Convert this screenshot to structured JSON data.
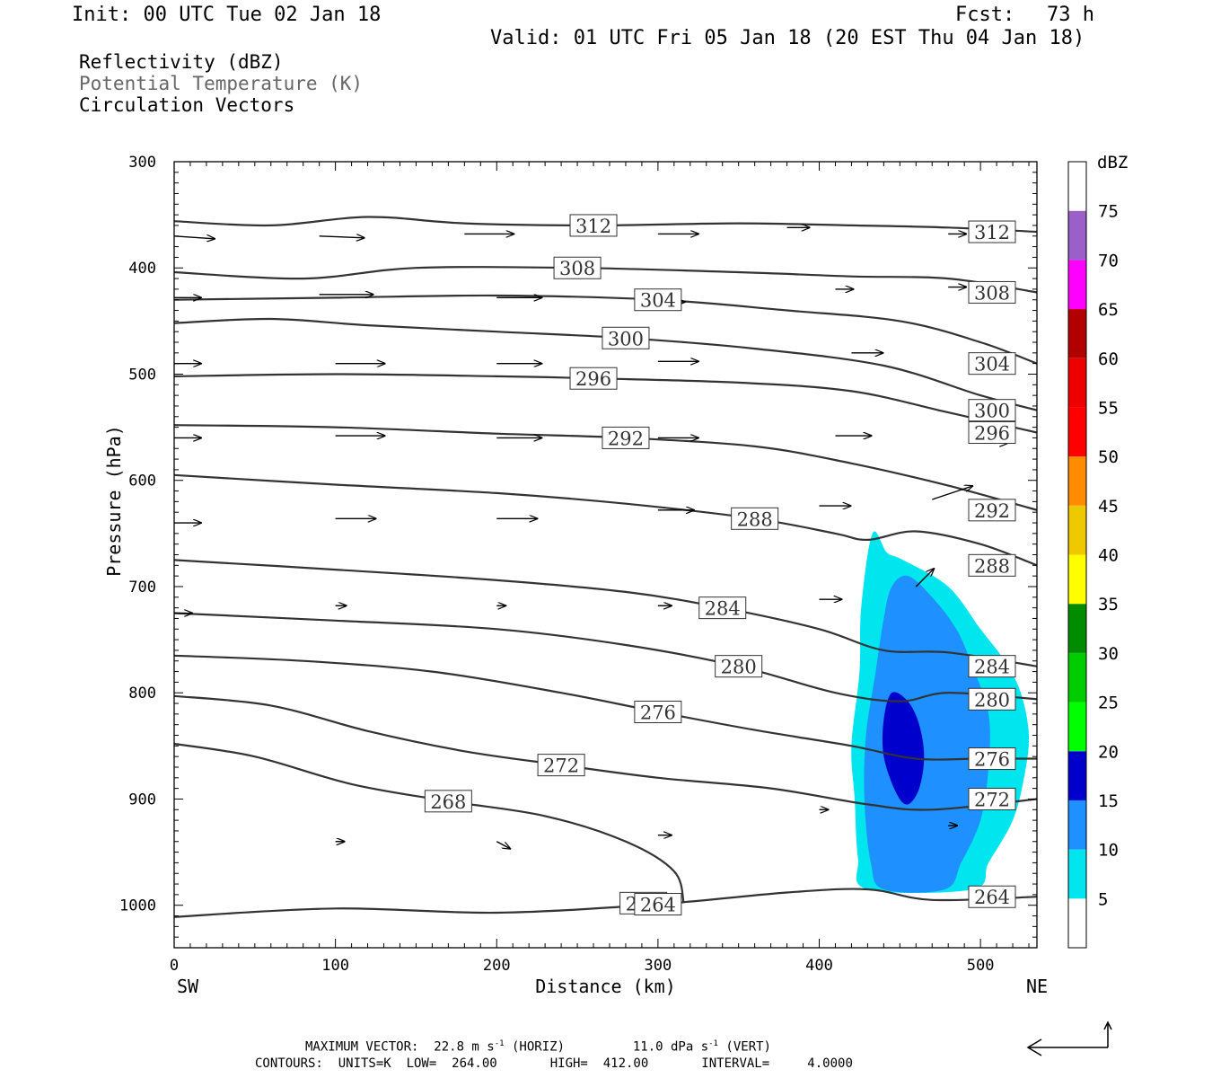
{
  "header": {
    "init": "Init: 00 UTC Tue 02 Jan 18",
    "fcst_label": "Fcst:",
    "fcst_value": "73 h",
    "valid": "Valid: 01 UTC Fri 05 Jan 18 (20 EST Thu 04 Jan 18)"
  },
  "fields": {
    "reflectivity": "Reflectivity (dBZ)",
    "theta": "Potential Temperature (K)",
    "vectors": "Circulation Vectors"
  },
  "footer": {
    "line1_a": "MAXIMUM VECTOR:  22.8 m s",
    "line1_sup1": "-1",
    "line1_b": " (HORIZ)         11.0 dPa s",
    "line1_sup2": "-1",
    "line1_c": " (VERT)",
    "line2": "CONTOURS:  UNITS=K  LOW=  264.00       HIGH=  412.00       INTERVAL=     4.0000"
  },
  "chart_data": {
    "type": "cross-section",
    "xlabel": "Distance (km)",
    "ylabel": "Pressure (hPa)",
    "xlim": [
      0,
      535
    ],
    "ylim": [
      1040,
      300
    ],
    "x_ticks": [
      0,
      100,
      200,
      300,
      400,
      500
    ],
    "y_ticks": [
      300,
      400,
      500,
      600,
      700,
      800,
      900,
      1000
    ],
    "x_end_labels": {
      "left": "SW",
      "right": "NE"
    },
    "colorbar": {
      "unit": "dBZ",
      "levels": [
        5,
        10,
        15,
        20,
        25,
        30,
        35,
        40,
        45,
        50,
        55,
        60,
        65,
        70,
        75
      ],
      "colors": [
        "#ffffff",
        "#00e5ee",
        "#1e90ff",
        "#0000cd",
        "#00ff00",
        "#00cd00",
        "#008b00",
        "#ffff00",
        "#eec900",
        "#ff8c00",
        "#ff0000",
        "#ee0000",
        "#b20000",
        "#ff00ff",
        "#9a5fc8",
        "#ffffff"
      ]
    },
    "theta_contours": [
      {
        "label": "312",
        "points": [
          [
            0,
            356
          ],
          [
            60,
            360
          ],
          [
            120,
            352
          ],
          [
            180,
            358
          ],
          [
            260,
            360
          ],
          [
            350,
            358
          ],
          [
            420,
            360
          ],
          [
            480,
            362
          ],
          [
            535,
            366
          ]
        ]
      },
      {
        "label": "308",
        "points": [
          [
            0,
            404
          ],
          [
            80,
            410
          ],
          [
            150,
            400
          ],
          [
            250,
            400
          ],
          [
            350,
            404
          ],
          [
            420,
            408
          ],
          [
            480,
            410
          ],
          [
            535,
            423
          ]
        ]
      },
      {
        "label": "304",
        "points": [
          [
            0,
            430
          ],
          [
            100,
            428
          ],
          [
            200,
            426
          ],
          [
            300,
            430
          ],
          [
            380,
            440
          ],
          [
            450,
            450
          ],
          [
            500,
            470
          ],
          [
            535,
            490
          ]
        ]
      },
      {
        "label": "300",
        "points": [
          [
            0,
            452
          ],
          [
            60,
            448
          ],
          [
            120,
            454
          ],
          [
            200,
            460
          ],
          [
            280,
            466
          ],
          [
            360,
            476
          ],
          [
            440,
            492
          ],
          [
            500,
            520
          ],
          [
            535,
            534
          ]
        ]
      },
      {
        "label": "296",
        "points": [
          [
            0,
            502
          ],
          [
            100,
            500
          ],
          [
            200,
            502
          ],
          [
            260,
            504
          ],
          [
            350,
            508
          ],
          [
            420,
            516
          ],
          [
            480,
            536
          ],
          [
            535,
            555
          ]
        ]
      },
      {
        "label": "292",
        "points": [
          [
            0,
            548
          ],
          [
            100,
            550
          ],
          [
            200,
            556
          ],
          [
            280,
            560
          ],
          [
            360,
            568
          ],
          [
            420,
            584
          ],
          [
            480,
            605
          ],
          [
            535,
            628
          ]
        ]
      },
      {
        "label": "288",
        "points": [
          [
            0,
            595
          ],
          [
            100,
            604
          ],
          [
            200,
            612
          ],
          [
            280,
            622
          ],
          [
            360,
            636
          ],
          [
            410,
            650
          ],
          [
            430,
            656
          ],
          [
            460,
            648
          ],
          [
            500,
            660
          ],
          [
            535,
            680
          ]
        ]
      },
      {
        "label": "284",
        "points": [
          [
            0,
            675
          ],
          [
            100,
            684
          ],
          [
            200,
            694
          ],
          [
            280,
            705
          ],
          [
            340,
            720
          ],
          [
            400,
            740
          ],
          [
            440,
            760
          ],
          [
            480,
            762
          ],
          [
            535,
            775
          ]
        ]
      },
      {
        "label": "280",
        "points": [
          [
            0,
            725
          ],
          [
            100,
            732
          ],
          [
            200,
            740
          ],
          [
            280,
            755
          ],
          [
            350,
            775
          ],
          [
            410,
            800
          ],
          [
            450,
            808
          ],
          [
            480,
            800
          ],
          [
            535,
            806
          ]
        ]
      },
      {
        "label": "276",
        "points": [
          [
            0,
            765
          ],
          [
            80,
            770
          ],
          [
            160,
            780
          ],
          [
            240,
            800
          ],
          [
            300,
            818
          ],
          [
            360,
            835
          ],
          [
            420,
            850
          ],
          [
            460,
            862
          ],
          [
            500,
            862
          ],
          [
            535,
            862
          ]
        ]
      },
      {
        "label": "272",
        "points": [
          [
            0,
            803
          ],
          [
            60,
            812
          ],
          [
            120,
            836
          ],
          [
            180,
            855
          ],
          [
            240,
            868
          ],
          [
            300,
            880
          ],
          [
            370,
            890
          ],
          [
            430,
            905
          ],
          [
            470,
            910
          ],
          [
            535,
            900
          ]
        ]
      },
      {
        "label": "268",
        "points": [
          [
            0,
            848
          ],
          [
            50,
            860
          ],
          [
            110,
            886
          ],
          [
            170,
            902
          ],
          [
            230,
            916
          ],
          [
            280,
            940
          ],
          [
            310,
            968
          ],
          [
            316,
            998
          ]
        ]
      },
      {
        "label": "264",
        "points": [
          [
            0,
            1011
          ],
          [
            100,
            1003
          ],
          [
            200,
            1007
          ],
          [
            300,
            999
          ],
          [
            380,
            988
          ],
          [
            430,
            985
          ],
          [
            470,
            995
          ],
          [
            535,
            992
          ]
        ]
      }
    ],
    "reflectivity_areas": [
      {
        "dbz": 5,
        "points": [
          [
            433,
            650
          ],
          [
            442,
            668
          ],
          [
            452,
            675
          ],
          [
            480,
            700
          ],
          [
            500,
            740
          ],
          [
            515,
            770
          ],
          [
            525,
            800
          ],
          [
            530,
            840
          ],
          [
            527,
            880
          ],
          [
            520,
            920
          ],
          [
            505,
            960
          ],
          [
            495,
            985
          ],
          [
            430,
            985
          ],
          [
            424,
            955
          ],
          [
            422,
            900
          ],
          [
            420,
            850
          ],
          [
            425,
            780
          ],
          [
            426,
            720
          ]
        ]
      },
      {
        "dbz": 10,
        "points": [
          [
            445,
            700
          ],
          [
            455,
            690
          ],
          [
            470,
            710
          ],
          [
            485,
            740
          ],
          [
            495,
            775
          ],
          [
            505,
            820
          ],
          [
            505,
            870
          ],
          [
            500,
            920
          ],
          [
            488,
            960
          ],
          [
            478,
            985
          ],
          [
            440,
            985
          ],
          [
            432,
            960
          ],
          [
            428,
            900
          ],
          [
            429,
            840
          ],
          [
            435,
            780
          ],
          [
            440,
            730
          ]
        ]
      },
      {
        "dbz": 15,
        "points": [
          [
            445,
            800
          ],
          [
            455,
            808
          ],
          [
            462,
            830
          ],
          [
            465,
            860
          ],
          [
            462,
            890
          ],
          [
            455,
            905
          ],
          [
            448,
            895
          ],
          [
            440,
            860
          ],
          [
            440,
            825
          ]
        ]
      }
    ],
    "vectors": [
      {
        "x": 0,
        "p": 370,
        "u": 45,
        "w": -3
      },
      {
        "x": 90,
        "p": 370,
        "u": 50,
        "w": -2
      },
      {
        "x": 180,
        "p": 368,
        "u": 55,
        "w": 0
      },
      {
        "x": 300,
        "p": 368,
        "u": 45,
        "w": 0
      },
      {
        "x": 380,
        "p": 362,
        "u": 25,
        "w": 0
      },
      {
        "x": 480,
        "p": 368,
        "u": 20,
        "w": 0
      },
      {
        "x": 0,
        "p": 428,
        "u": 30,
        "w": 0
      },
      {
        "x": 90,
        "p": 425,
        "u": 60,
        "w": 0
      },
      {
        "x": 200,
        "p": 428,
        "u": 50,
        "w": 0
      },
      {
        "x": 300,
        "p": 432,
        "u": 30,
        "w": 0
      },
      {
        "x": 410,
        "p": 420,
        "u": 20,
        "w": 0
      },
      {
        "x": 480,
        "p": 418,
        "u": 20,
        "w": 0
      },
      {
        "x": 0,
        "p": 490,
        "u": 30,
        "w": 0
      },
      {
        "x": 100,
        "p": 490,
        "u": 55,
        "w": 0
      },
      {
        "x": 200,
        "p": 490,
        "u": 50,
        "w": 0
      },
      {
        "x": 300,
        "p": 488,
        "u": 45,
        "w": 0
      },
      {
        "x": 420,
        "p": 480,
        "u": 35,
        "w": 0
      },
      {
        "x": 500,
        "p": 484,
        "u": 35,
        "w": 0
      },
      {
        "x": 0,
        "p": 560,
        "u": 30,
        "w": 0
      },
      {
        "x": 100,
        "p": 558,
        "u": 55,
        "w": 0
      },
      {
        "x": 200,
        "p": 560,
        "u": 50,
        "w": 0
      },
      {
        "x": 300,
        "p": 560,
        "u": 45,
        "w": 0
      },
      {
        "x": 410,
        "p": 558,
        "u": 40,
        "w": 0
      },
      {
        "x": 500,
        "p": 565,
        "u": 30,
        "w": 0
      },
      {
        "x": 0,
        "p": 640,
        "u": 30,
        "w": 0
      },
      {
        "x": 100,
        "p": 636,
        "u": 45,
        "w": 0
      },
      {
        "x": 200,
        "p": 636,
        "u": 45,
        "w": 0
      },
      {
        "x": 300,
        "p": 628,
        "u": 40,
        "w": 0
      },
      {
        "x": 400,
        "p": 624,
        "u": 35,
        "w": 0
      },
      {
        "x": 470,
        "p": 618,
        "u": 45,
        "w": 15
      },
      {
        "x": 0,
        "p": 725,
        "u": 20,
        "w": 0
      },
      {
        "x": 100,
        "p": 718,
        "u": 12,
        "w": 0
      },
      {
        "x": 200,
        "p": 718,
        "u": 10,
        "w": 0
      },
      {
        "x": 300,
        "p": 718,
        "u": 15,
        "w": 0
      },
      {
        "x": 400,
        "p": 712,
        "u": 25,
        "w": 0
      },
      {
        "x": 460,
        "p": 700,
        "u": 20,
        "w": 20
      },
      {
        "x": 100,
        "p": 940,
        "u": 10,
        "w": 0
      },
      {
        "x": 200,
        "p": 940,
        "u": 15,
        "w": -8
      },
      {
        "x": 300,
        "p": 934,
        "u": 15,
        "w": 0
      },
      {
        "x": 400,
        "p": 910,
        "u": 10,
        "w": 0
      },
      {
        "x": 480,
        "p": 925,
        "u": 10,
        "w": 0
      }
    ]
  },
  "vector_legend": "horizontal-vertical reference arrows"
}
